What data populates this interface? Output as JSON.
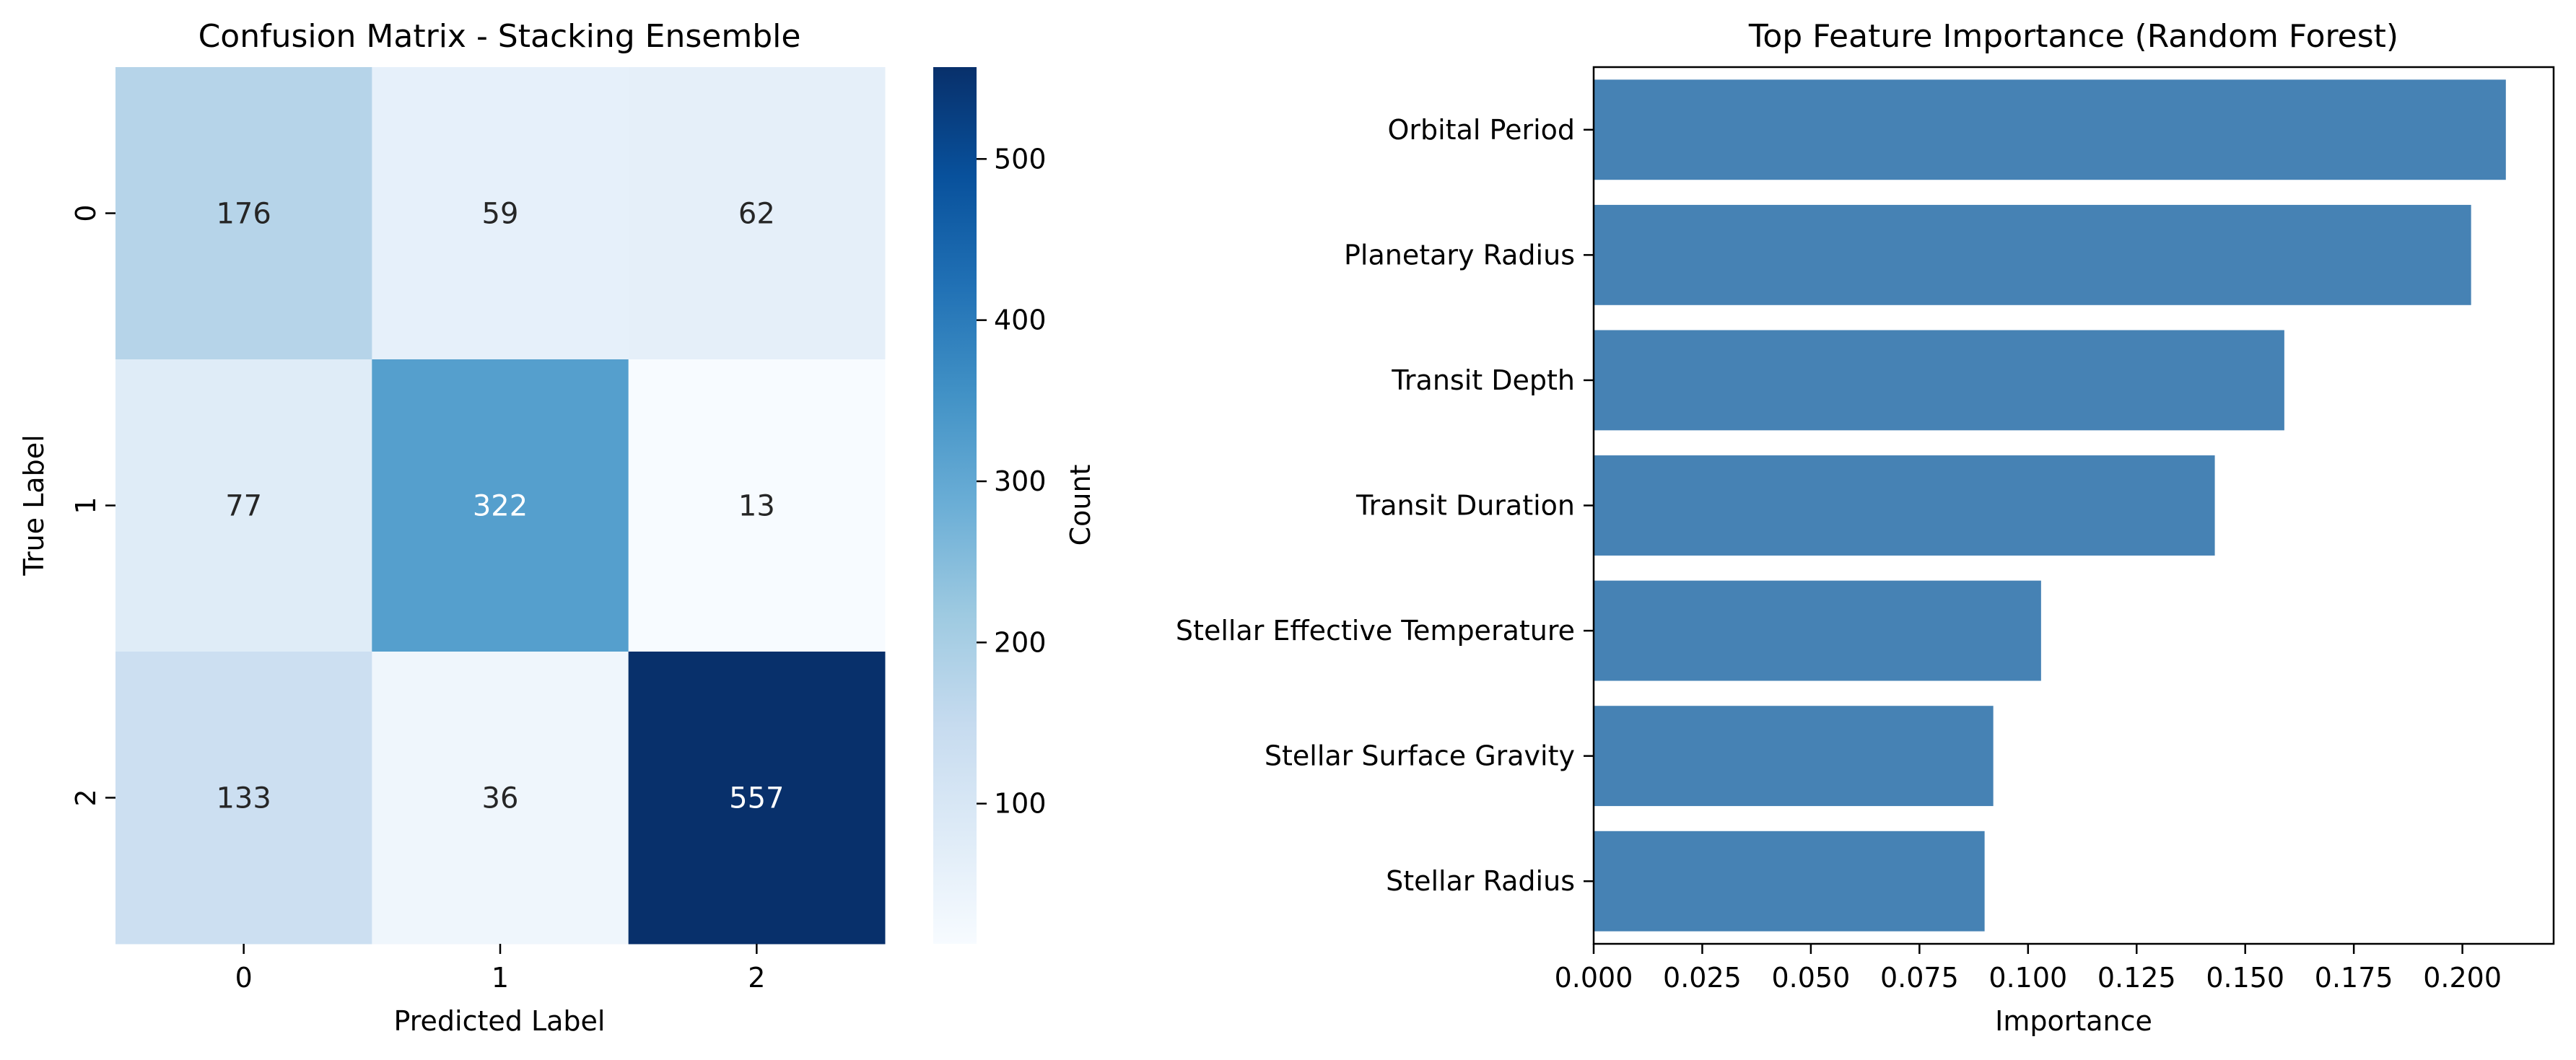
{
  "chart_data": [
    {
      "type": "heatmap",
      "title": "Confusion Matrix - Stacking Ensemble",
      "xlabel": "Predicted Label",
      "ylabel": "True Label",
      "x_categories": [
        "0",
        "1",
        "2"
      ],
      "y_categories": [
        "0",
        "1",
        "2"
      ],
      "values": [
        [
          176,
          59,
          62
        ],
        [
          77,
          322,
          13
        ],
        [
          133,
          36,
          557
        ]
      ],
      "colorbar": {
        "label": "Count",
        "colormap": "Blues",
        "range": [
          13,
          557
        ],
        "ticks": [
          100,
          200,
          300,
          400,
          500
        ]
      },
      "annotations": true,
      "grid": false
    },
    {
      "type": "bar",
      "orientation": "horizontal",
      "title": "Top Feature Importance (Random Forest)",
      "xlabel": "Importance",
      "ylabel": "",
      "categories": [
        "Orbital Period",
        "Planetary Radius",
        "Transit Depth",
        "Transit Duration",
        "Stellar Effective Temperature",
        "Stellar Surface Gravity",
        "Stellar Radius"
      ],
      "values": [
        0.21,
        0.202,
        0.159,
        0.143,
        0.103,
        0.092,
        0.09
      ],
      "xlim": [
        0.0,
        0.221
      ],
      "xticks": [
        "0.000",
        "0.025",
        "0.050",
        "0.075",
        "0.100",
        "0.125",
        "0.150",
        "0.175",
        "0.200"
      ],
      "bar_color": "#4682b4",
      "grid": false
    }
  ]
}
